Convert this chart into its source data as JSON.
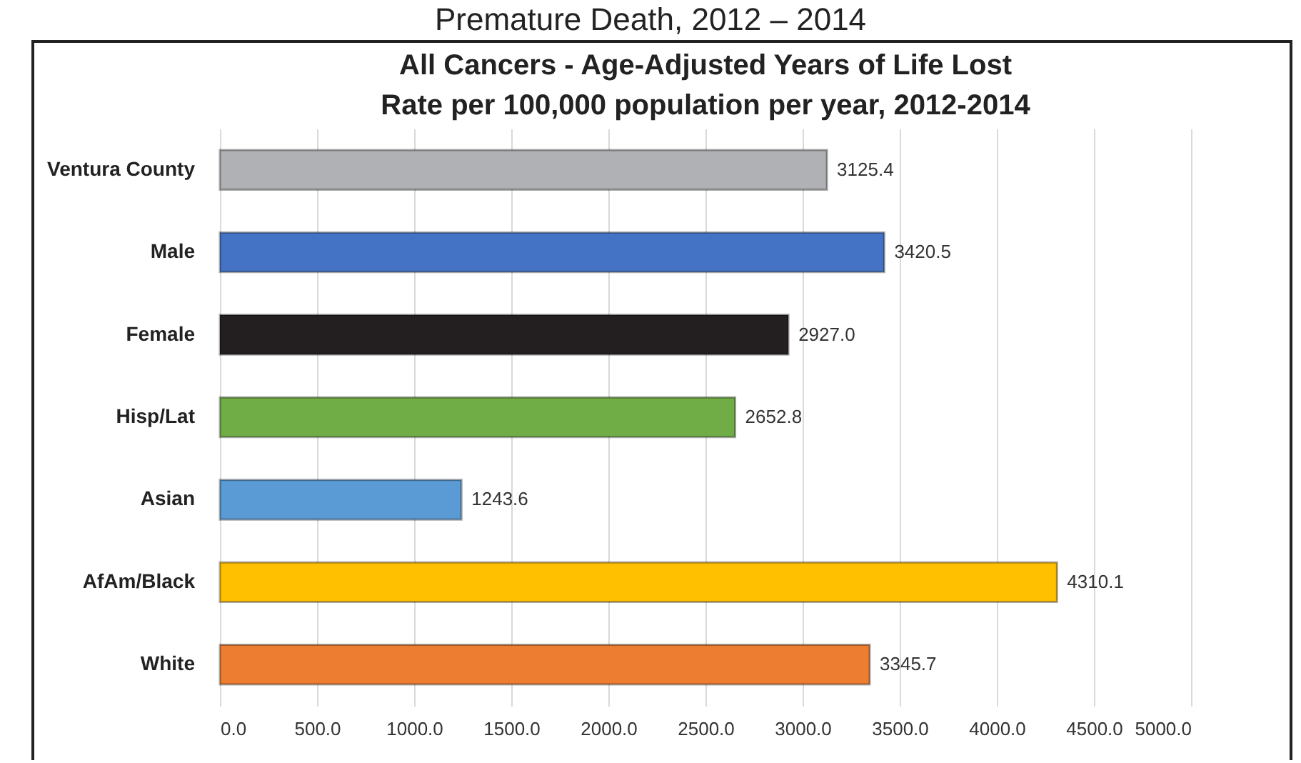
{
  "chart_data": {
    "type": "bar",
    "orientation": "horizontal",
    "title": "All Cancers - Age-Adjusted Years of Life Lost",
    "subtitle": "Rate per 100,000 population per year, 2012-2014",
    "annotations": [
      "Premature Death, 2012 – 2014"
    ],
    "categories": [
      "Ventura County",
      "Male",
      "Female",
      "Hisp/Lat",
      "Asian",
      "AfAm/Black",
      "White"
    ],
    "values": [
      3125.4,
      3420.5,
      2927.0,
      2652.8,
      1243.6,
      4310.1,
      3345.7
    ],
    "value_labels": [
      "3125.4",
      "3420.5",
      "2927.0",
      "2652.8",
      "1243.6",
      "4310.1",
      "3345.7"
    ],
    "colors": [
      "#b0b1b4",
      "#4472c4",
      "#231f20",
      "#70ad47",
      "#5b9bd5",
      "#ffc000",
      "#ed7d31"
    ],
    "xlim": [
      0,
      5000
    ],
    "xticks": [
      {
        "value": 0,
        "label": "0.0"
      },
      {
        "value": 500,
        "label": "500.0"
      },
      {
        "value": 1000,
        "label": "1000.0"
      },
      {
        "value": 1500,
        "label": "1500.0"
      },
      {
        "value": 2000,
        "label": "2000.0"
      },
      {
        "value": 2500,
        "label": "2500.0"
      },
      {
        "value": 3000,
        "label": "3000.0"
      },
      {
        "value": 3500,
        "label": "3500.0"
      },
      {
        "value": 4000,
        "label": "4000.0"
      },
      {
        "value": 4500,
        "label": "4500.0"
      },
      {
        "value": 5000,
        "label": "5000.0"
      }
    ],
    "grid": "x"
  }
}
